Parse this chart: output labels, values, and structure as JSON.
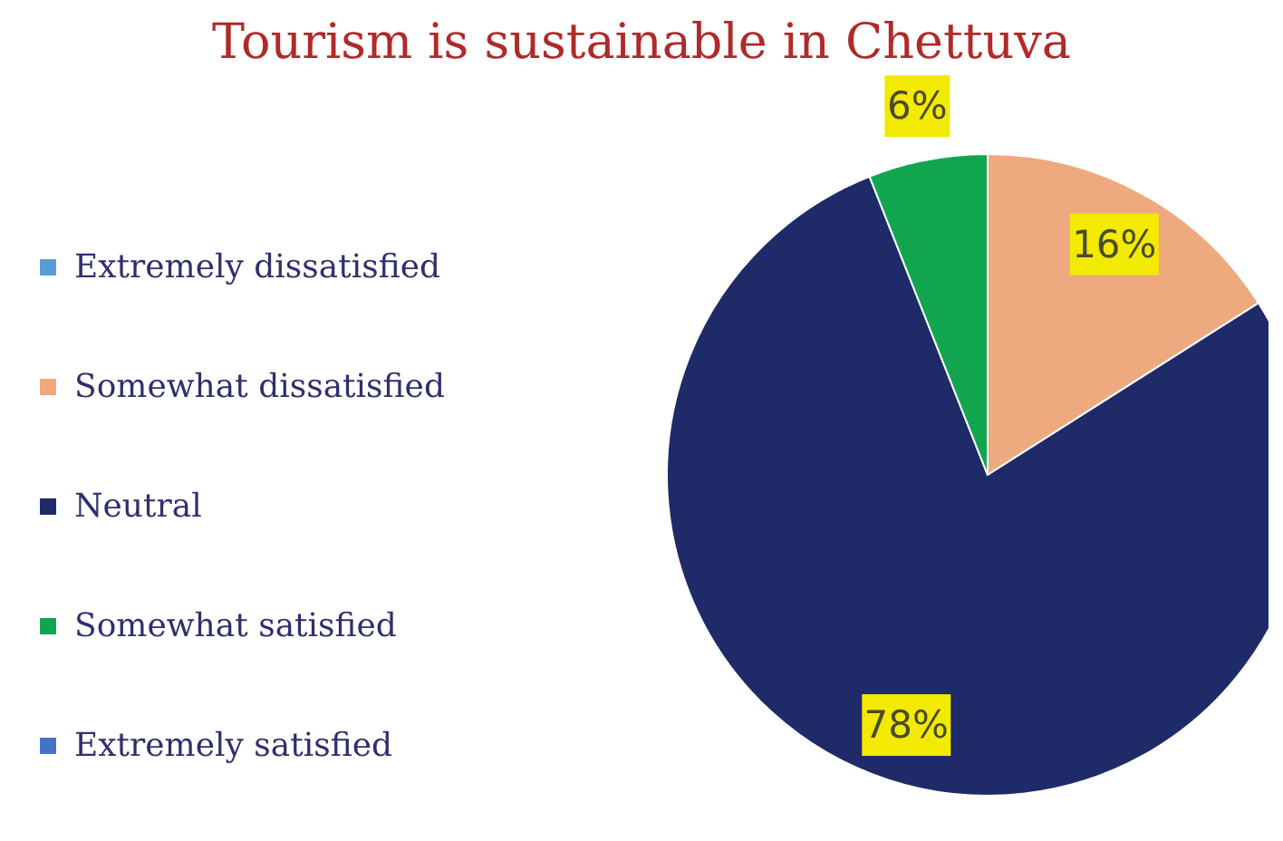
{
  "chart_data": {
    "type": "pie",
    "title": "Tourism is sustainable in Chettuva",
    "categories": [
      "Extremely dissatisfied",
      "Somewhat dissatisfied",
      "Neutral",
      "Somewhat satisfied",
      "Extremely satisfied"
    ],
    "values": [
      0,
      16,
      78,
      6,
      0
    ],
    "colors": [
      "#5b9bd5",
      "#eea97e",
      "#1f2a68",
      "#12a550",
      "#4472c4"
    ],
    "value_labels": [
      null,
      "16%",
      "78%",
      "6%",
      null
    ],
    "legend": "left"
  }
}
